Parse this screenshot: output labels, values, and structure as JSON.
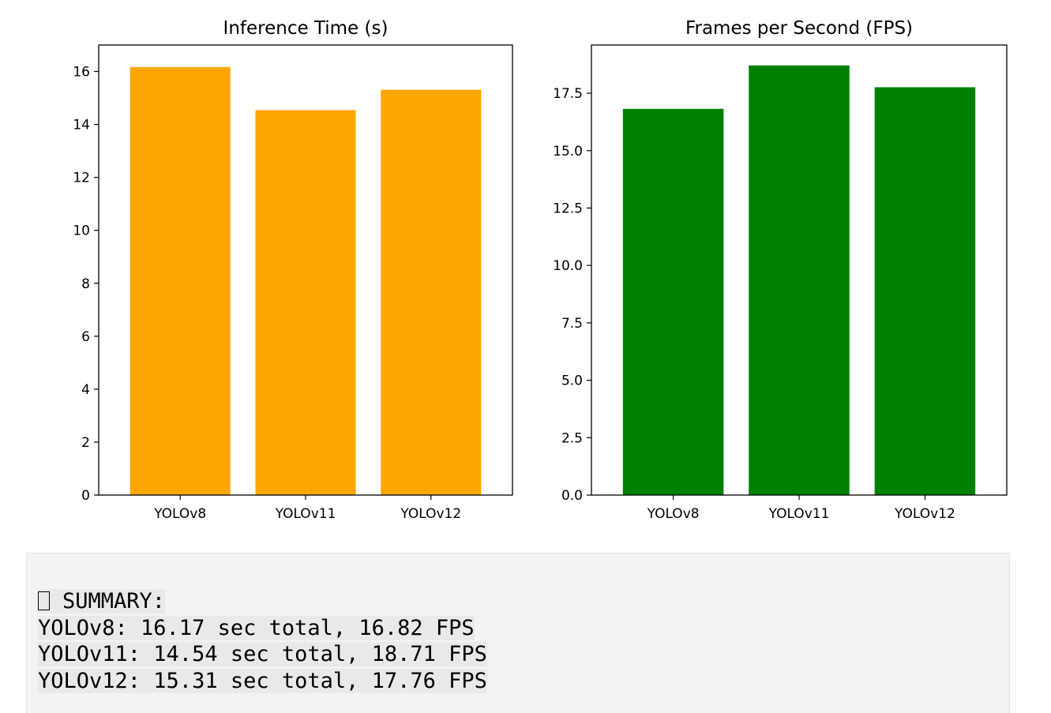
{
  "chart_data": [
    {
      "type": "bar",
      "title": "Inference Time (s)",
      "categories": [
        "YOLOv8",
        "YOLOv11",
        "YOLOv12"
      ],
      "values": [
        16.17,
        14.54,
        15.31
      ],
      "ylim": [
        0,
        17
      ],
      "yticks": [
        0,
        2,
        4,
        6,
        8,
        10,
        12,
        14,
        16
      ],
      "ytick_labels": [
        "0",
        "2",
        "4",
        "6",
        "8",
        "10",
        "12",
        "14",
        "16"
      ],
      "color": "#ffa500",
      "grid": false,
      "xlabel": "",
      "ylabel": ""
    },
    {
      "type": "bar",
      "title": "Frames per Second (FPS)",
      "categories": [
        "YOLOv8",
        "YOLOv11",
        "YOLOv12"
      ],
      "values": [
        16.82,
        18.71,
        17.76
      ],
      "ylim": [
        0,
        19.6
      ],
      "yticks": [
        0,
        2.5,
        5,
        7.5,
        10,
        12.5,
        15,
        17.5
      ],
      "ytick_labels": [
        "0.0",
        "2.5",
        "5.0",
        "7.5",
        "10.0",
        "12.5",
        "15.0",
        "17.5"
      ],
      "color": "#008000",
      "grid": false,
      "xlabel": "",
      "ylabel": ""
    }
  ],
  "output": {
    "icon": "missing-glyph-icon",
    "heading": "SUMMARY:",
    "lines": [
      "YOLOv8: 16.17 sec total, 16.82 FPS",
      "YOLOv11: 14.54 sec total, 18.71 FPS",
      "YOLOv12: 15.31 sec total, 17.76 FPS"
    ]
  }
}
